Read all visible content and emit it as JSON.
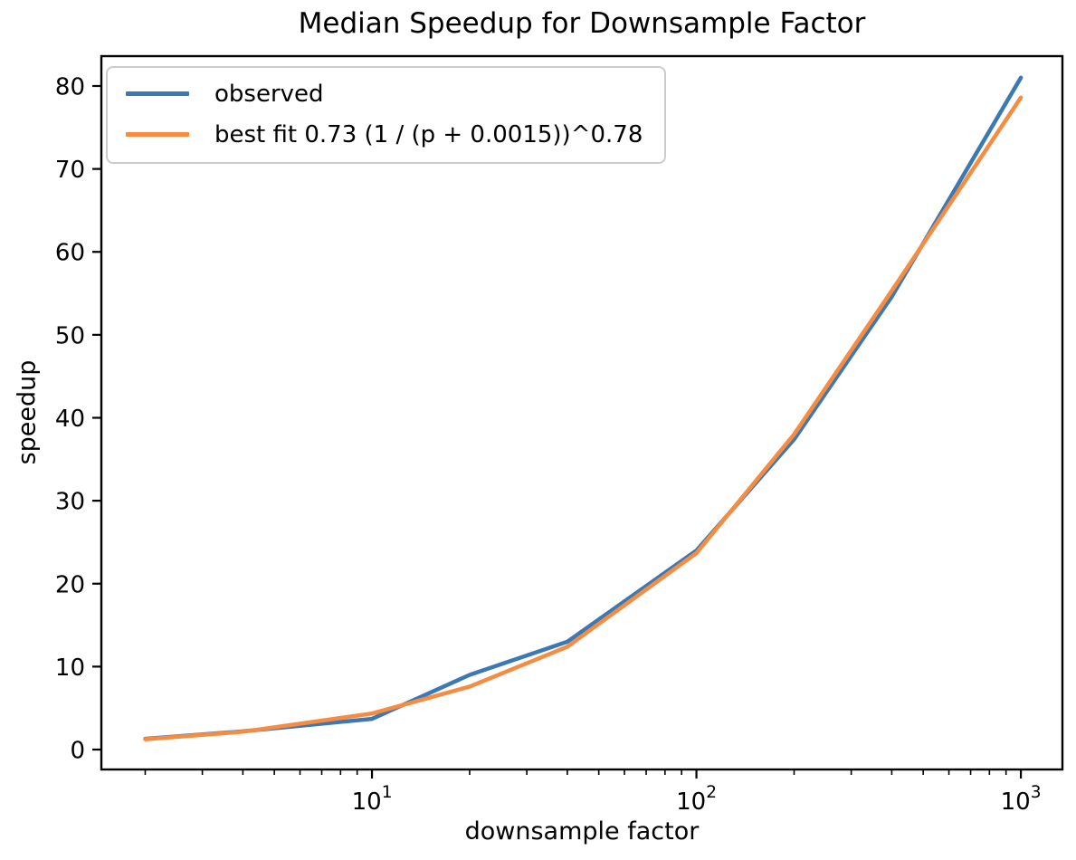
{
  "chart_data": {
    "type": "line",
    "title": "Median Speedup for Downsample Factor",
    "xlabel": "downsample factor",
    "ylabel": "speedup",
    "x_scale": "log",
    "grid": false,
    "legend_position": "upper left",
    "x": [
      2,
      4,
      10,
      20,
      40,
      100,
      200,
      400,
      1000
    ],
    "series": [
      {
        "name": "observed",
        "color": "#3c79b4",
        "values": [
          1.3,
          2.2,
          3.7,
          9.0,
          13.0,
          24.0,
          37.4,
          54.6,
          81.0
        ]
      },
      {
        "name": "best fit 0.73 (1 / (p + 0.0015))^0.78",
        "color": "#f68c40",
        "values": [
          1.25,
          2.15,
          4.35,
          7.6,
          12.4,
          23.7,
          38.0,
          55.3,
          78.6
        ]
      }
    ],
    "xlim": [
      1.465,
      1343
    ],
    "ylim": [
      -2.4,
      83.6
    ],
    "y_ticks": [
      0,
      10,
      20,
      30,
      40,
      50,
      60,
      70,
      80
    ],
    "x_major_ticks": [
      {
        "value": 10,
        "base": "10",
        "exp": "1"
      },
      {
        "value": 100,
        "base": "10",
        "exp": "2"
      },
      {
        "value": 1000,
        "base": "10",
        "exp": "3"
      }
    ],
    "x_minor_ticks": [
      2,
      3,
      4,
      5,
      6,
      7,
      8,
      9,
      20,
      30,
      40,
      50,
      60,
      70,
      80,
      90,
      200,
      300,
      400,
      500,
      600,
      700,
      800,
      900
    ],
    "axis_color": "#000000"
  }
}
